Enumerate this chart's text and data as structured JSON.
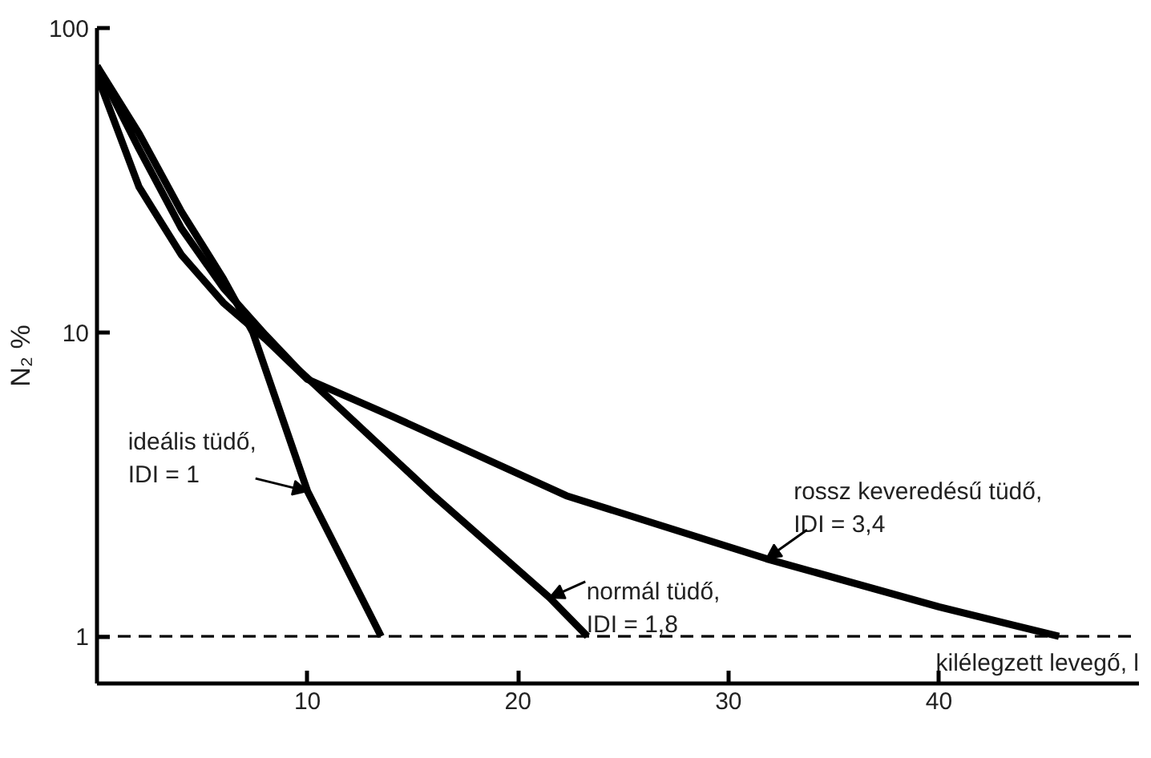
{
  "chart_data": {
    "type": "line",
    "xlabel": "kilélegzett levegő, l",
    "ylabel": "N₂ %",
    "log": "y",
    "grid": false,
    "marker": "none",
    "line_style": "solid",
    "xlim": [
      0,
      49.5
    ],
    "ylim": [
      0.7,
      100
    ],
    "xticks": [
      10,
      20,
      30,
      40
    ],
    "yticks": [
      1,
      10,
      100
    ],
    "series": [
      {
        "color": "#000000",
        "x": [
          0,
          2,
          4,
          6,
          7.4,
          10,
          13.5
        ],
        "values": [
          75,
          45,
          25,
          15,
          10,
          3.0,
          1
        ]
      },
      {
        "color": "#000000",
        "x": [
          0,
          2,
          4,
          6,
          8,
          9.6,
          16,
          21.5,
          23.3
        ],
        "values": [
          75,
          40,
          22,
          14,
          9.8,
          7.5,
          2.9,
          1.34,
          1
        ]
      },
      {
        "color": "#000000",
        "x": [
          0,
          2,
          4,
          6,
          8,
          10,
          14,
          22.3,
          31.8,
          40,
          45.7
        ],
        "values": [
          70,
          30,
          18,
          12.5,
          9.5,
          7,
          5.3,
          2.9,
          1.8,
          1.25,
          1
        ]
      }
    ],
    "ref_lines": [
      {
        "axis": "y",
        "value": 1,
        "line_style": "dashed",
        "color": "#000000"
      }
    ],
    "annotations": [
      {
        "text": "ideális tüdő,\nIDI = 1",
        "x": 10,
        "y": 3.0
      },
      {
        "text": "normál tüdő,\nIDI = 1,8",
        "x": 21.5,
        "y": 1.34
      },
      {
        "text": "rossz keveredésű tüdő,\nIDI = 3,4",
        "x": 31.8,
        "y": 1.8
      }
    ]
  }
}
